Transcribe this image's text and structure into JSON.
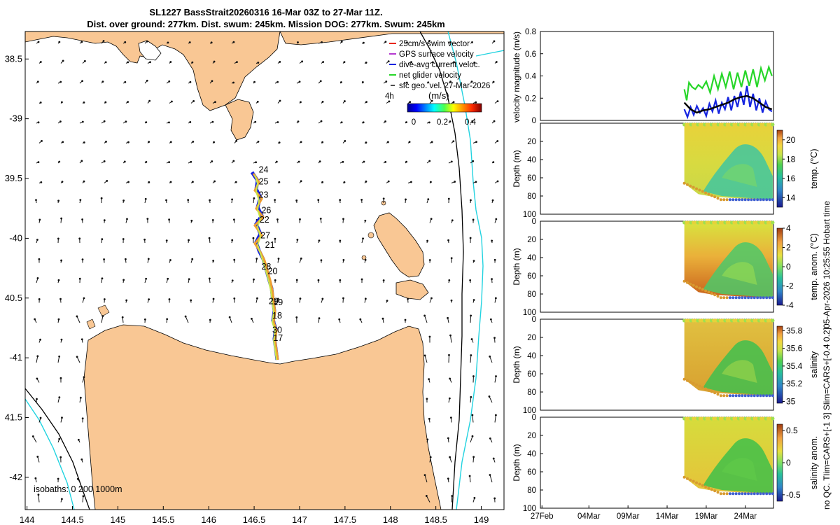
{
  "title_line1": "SL1227 BassStrait20260316 16-Mar 03Z to 27-Mar 11Z.",
  "title_line2": "Dist. over ground: 277km. Dist. swum: 245km. Mission DOG: 277km. Swum: 245km",
  "colors": {
    "land": "#f9c794",
    "isobath_200": "#000000",
    "isobath_1000": "#22d3e0",
    "swim": "#e8281c",
    "gps": "#b53ad0",
    "dive": "#1524e0",
    "net": "#27d629",
    "sfc": "#111111"
  },
  "chart_data": [
    {
      "type": "map",
      "xlabel_ticks": [
        "144",
        "144.5",
        "145",
        "145.5",
        "146",
        "146.5",
        "147",
        "147.5",
        "148",
        "148.5",
        "149"
      ],
      "ylabel_ticks": [
        "38.5",
        "-39",
        "39.5",
        "-40",
        "40.5",
        "-41",
        "41.5",
        "-42"
      ],
      "xlim": [
        143.98,
        149.25
      ],
      "ylim": [
        -42.27,
        -38.27
      ],
      "legend": [
        {
          "label": "25cm/s swim vector",
          "color": "#e8281c"
        },
        {
          "label": "GPS surface velocity",
          "color": "#b53ad0"
        },
        {
          "label": "dive-avg current veloc.",
          "color": "#1524e0"
        },
        {
          "label": "net glider velocity",
          "color": "#27d629"
        },
        {
          "label": "sfc geo. vel. 27-Mar-2026",
          "color": "#111111"
        }
      ],
      "legend_extra": "4h",
      "colorbar_label": "(m/s)",
      "colorbar_ticks": [
        "0",
        "0.2",
        "0.4"
      ],
      "isobath_note": "isobaths: 0   200  1000m",
      "track_day_labels": [
        {
          "day": "24",
          "lon": 146.55,
          "lat": -39.45
        },
        {
          "day": "25",
          "lon": 146.55,
          "lat": -39.55
        },
        {
          "day": "23",
          "lon": 146.55,
          "lat": -39.66
        },
        {
          "day": "26",
          "lon": 146.58,
          "lat": -39.79
        },
        {
          "day": "22",
          "lon": 146.56,
          "lat": -39.87
        },
        {
          "day": "27",
          "lon": 146.57,
          "lat": -40.0
        },
        {
          "day": "21",
          "lon": 146.62,
          "lat": -40.08
        },
        {
          "day": "28",
          "lon": 146.58,
          "lat": -40.26
        },
        {
          "day": "20",
          "lon": 146.65,
          "lat": -40.3
        },
        {
          "day": "29",
          "lon": 146.66,
          "lat": -40.55
        },
        {
          "day": "19",
          "lon": 146.71,
          "lat": -40.56
        },
        {
          "day": "18",
          "lon": 146.7,
          "lat": -40.67
        },
        {
          "day": "30",
          "lon": 146.7,
          "lat": -40.79
        },
        {
          "day": "17",
          "lon": 146.71,
          "lat": -40.86
        }
      ]
    },
    {
      "type": "line",
      "ylabel": "velocity magnitude (m/s)",
      "ylim": [
        0,
        0.8
      ],
      "yticks": [
        "0",
        "0.2",
        "0.4",
        "0.6",
        "0.8"
      ],
      "series": [
        {
          "name": "net glider velocity",
          "color": "#27d629",
          "values": [
            [
              16.2,
              0.28
            ],
            [
              16.5,
              0.18
            ],
            [
              16.8,
              0.34
            ],
            [
              17.2,
              0.3
            ],
            [
              17.6,
              0.28
            ],
            [
              18,
              0.32
            ],
            [
              18.5,
              0.29
            ],
            [
              19,
              0.35
            ],
            [
              19.5,
              0.25
            ],
            [
              20,
              0.4
            ],
            [
              20.5,
              0.28
            ],
            [
              21,
              0.42
            ],
            [
              21.5,
              0.3
            ],
            [
              22,
              0.44
            ],
            [
              22.5,
              0.28
            ],
            [
              23,
              0.43
            ],
            [
              23.5,
              0.3
            ],
            [
              24,
              0.45
            ],
            [
              24.5,
              0.31
            ],
            [
              25,
              0.46
            ],
            [
              25.5,
              0.3
            ],
            [
              26,
              0.47
            ],
            [
              26.5,
              0.36
            ],
            [
              27,
              0.48
            ],
            [
              27.4,
              0.4
            ]
          ]
        },
        {
          "name": "dive-avg current veloc.",
          "color": "#1524e0",
          "values": [
            [
              16.2,
              0.1
            ],
            [
              16.6,
              0.03
            ],
            [
              17,
              0.12
            ],
            [
              17.4,
              0.05
            ],
            [
              17.8,
              0.13
            ],
            [
              18.2,
              0.07
            ],
            [
              18.6,
              0.11
            ],
            [
              19,
              0.04
            ],
            [
              19.4,
              0.15
            ],
            [
              19.8,
              0.08
            ],
            [
              20.2,
              0.18
            ],
            [
              20.6,
              0.06
            ],
            [
              21,
              0.16
            ],
            [
              21.4,
              0.1
            ],
            [
              21.8,
              0.21
            ],
            [
              22.2,
              0.09
            ],
            [
              22.6,
              0.22
            ],
            [
              23,
              0.12
            ],
            [
              23.4,
              0.26
            ],
            [
              23.8,
              0.14
            ],
            [
              24.2,
              0.31
            ],
            [
              24.6,
              0.12
            ],
            [
              25,
              0.24
            ],
            [
              25.4,
              0.09
            ],
            [
              25.8,
              0.2
            ],
            [
              26.2,
              0.07
            ],
            [
              26.6,
              0.17
            ],
            [
              27,
              0.1
            ],
            [
              27.4,
              0.08
            ]
          ]
        },
        {
          "name": "mean",
          "color": "#000000",
          "values": [
            [
              16.2,
              0.16
            ],
            [
              17,
              0.1
            ],
            [
              17.8,
              0.07
            ],
            [
              18.6,
              0.09
            ],
            [
              19.4,
              0.1
            ],
            [
              20.2,
              0.12
            ],
            [
              21,
              0.14
            ],
            [
              21.8,
              0.16
            ],
            [
              22.6,
              0.19
            ],
            [
              23.4,
              0.21
            ],
            [
              24.2,
              0.22
            ],
            [
              25,
              0.2
            ],
            [
              25.8,
              0.16
            ],
            [
              26.6,
              0.12
            ],
            [
              27.4,
              0.1
            ]
          ]
        }
      ]
    },
    {
      "type": "heatmap",
      "ylabel": "Depth (m)",
      "cblabel": "temp. (°C)",
      "yticks": [
        "20",
        "40",
        "60",
        "80",
        "100"
      ],
      "cbticks": [
        "20",
        "18",
        "16",
        "14"
      ],
      "cbrange": [
        13,
        21
      ]
    },
    {
      "type": "heatmap",
      "ylabel": "Depth (m)",
      "cblabel": "temp. anom. (°C)",
      "yticks": [
        "0",
        "20",
        "40",
        "60",
        "80",
        "100"
      ],
      "cbticks": [
        "4",
        "2",
        "0",
        "-2",
        "-4"
      ],
      "cbrange": [
        -4,
        4
      ]
    },
    {
      "type": "heatmap",
      "ylabel": "Depth (m)",
      "cblabel": "salinity",
      "yticks": [
        "0",
        "20",
        "40",
        "60",
        "80",
        "100"
      ],
      "cbticks": [
        "35.8",
        "35.6",
        "35.4",
        "35.2",
        "35"
      ],
      "cbrange": [
        34.98,
        35.85
      ]
    },
    {
      "type": "heatmap",
      "ylabel": "Depth (m)",
      "cblabel": "salinity anom.",
      "yticks": [
        "0",
        "20",
        "40",
        "60",
        "80",
        "100"
      ],
      "cbticks": [
        "0.5",
        "0",
        "-0.5"
      ],
      "cbrange": [
        -0.6,
        0.6
      ],
      "xticks": [
        "27Feb",
        "04Mar",
        "09Mar",
        "14Mar",
        "19Mar",
        "24Mar"
      ]
    }
  ],
  "side_note_1": "05-Apr-2026 10:25:55 Hobart time",
  "side_note_2": "no QC. Tlim=CARS+[-1 3] Slim=CARS+[-0.4 0.2]"
}
